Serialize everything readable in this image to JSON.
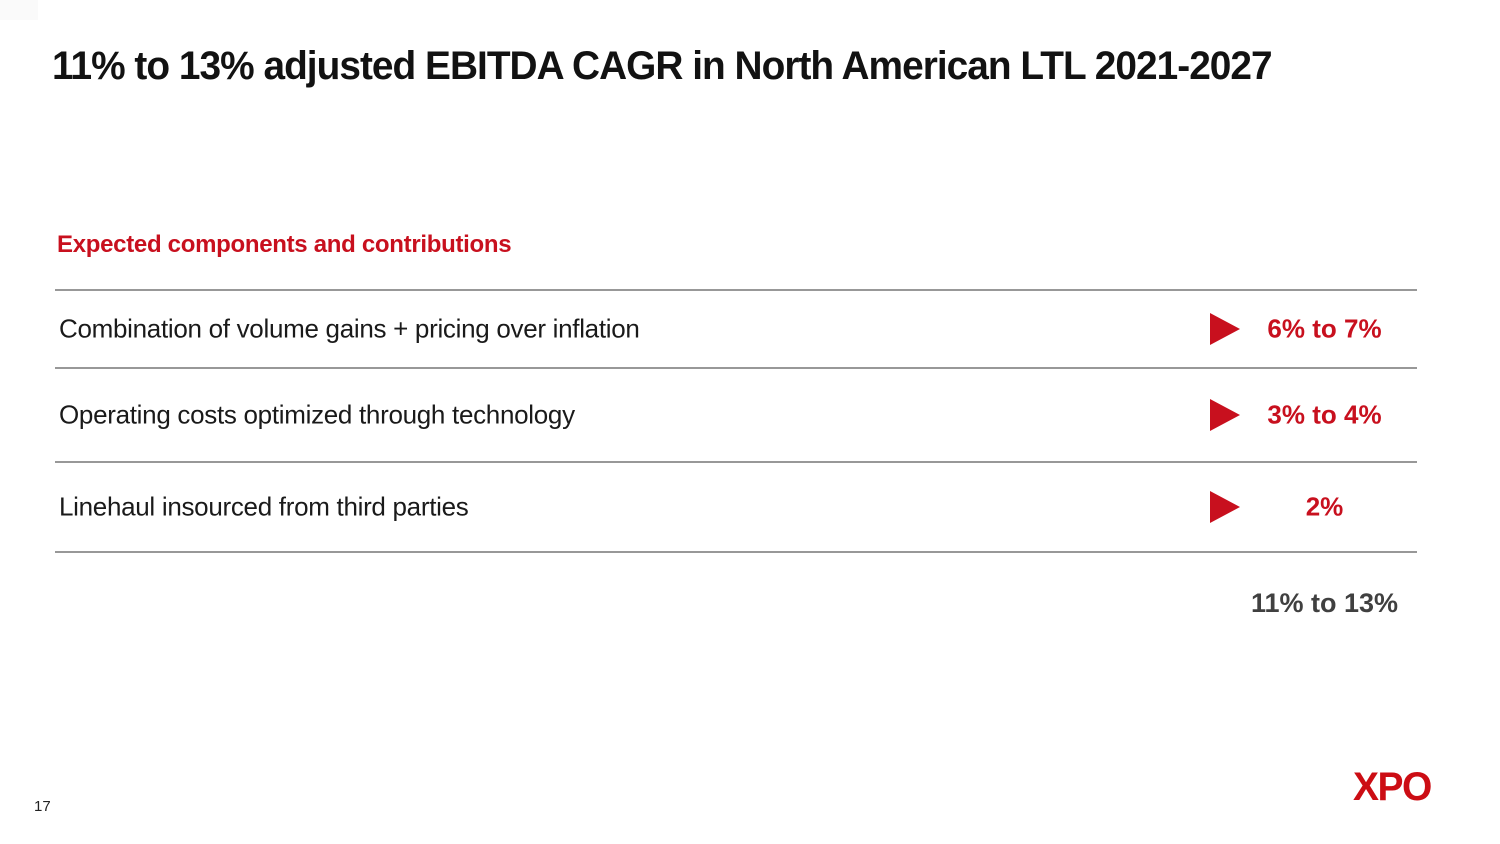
{
  "slide": {
    "title": "11% to 13% adjusted EBITDA CAGR in North American LTL 2021-2027",
    "section_heading": "Expected components and contributions",
    "rows": [
      {
        "label": "Combination of volume gains + pricing over inflation",
        "value": "6% to 7%"
      },
      {
        "label": "Operating costs optimized through technology",
        "value": "3% to 4%"
      },
      {
        "label": "Linehaul insourced from third parties",
        "value": "2%"
      }
    ],
    "total": "11% to 13%",
    "page_number": "17",
    "logo_text": "XPO",
    "icons": {
      "row_marker": "right-triangle-icon"
    },
    "colors": {
      "brand_red": "#c8101e",
      "logo_red": "#cc0d14",
      "rule_gray": "#989898",
      "total_gray": "#404040",
      "text_black": "#1a1a1a"
    }
  }
}
